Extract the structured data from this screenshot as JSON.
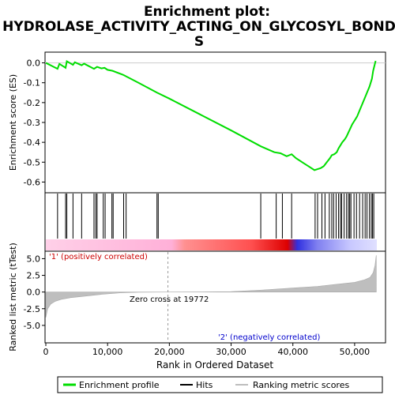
{
  "title": {
    "line1": "Enrichment plot:",
    "line2": "HYDROLASE_ACTIVITY_ACTING_ON_GLYCOSYL_BOND",
    "line3": "S"
  },
  "chart_data": {
    "type": "line",
    "panels": {
      "enrichment": {
        "ylabel": "Enrichment score (ES)",
        "ylim": [
          -0.65,
          0.05
        ],
        "yticks": [
          "0.0",
          "-0.1",
          "-0.2",
          "-0.3",
          "-0.4",
          "-0.5",
          "-0.6"
        ],
        "ytick_values": [
          0.0,
          -0.1,
          -0.2,
          -0.3,
          -0.4,
          -0.5,
          -0.6
        ],
        "series": [
          {
            "name": "Enrichment profile",
            "color": "#00dd00",
            "x": [
              0,
              1900,
              2200,
              3200,
              3400,
              4400,
              4700,
              5800,
              6200,
              7800,
              8300,
              9000,
              9500,
              10000,
              10800,
              12500,
              15000,
              18000,
              20000,
              25000,
              30000,
              34800,
              37000,
              38000,
              39000,
              39800,
              40500,
              41500,
              42500,
              43500,
              44000,
              44500,
              45000,
              45500,
              46000,
              46300,
              46700,
              47100,
              47400,
              47700,
              48000,
              48400,
              48700,
              49000,
              49300,
              49600,
              50000,
              50400,
              50800,
              51200,
              51600,
              52000,
              52400,
              52800,
              53000,
              53400
            ],
            "y": [
              0.0,
              -0.03,
              -0.005,
              -0.025,
              0.008,
              -0.01,
              0.003,
              -0.012,
              -0.004,
              -0.03,
              -0.02,
              -0.028,
              -0.025,
              -0.035,
              -0.04,
              -0.06,
              -0.1,
              -0.15,
              -0.18,
              -0.26,
              -0.34,
              -0.42,
              -0.45,
              -0.455,
              -0.47,
              -0.46,
              -0.48,
              -0.5,
              -0.52,
              -0.54,
              -0.535,
              -0.53,
              -0.52,
              -0.5,
              -0.48,
              -0.465,
              -0.46,
              -0.45,
              -0.43,
              -0.415,
              -0.4,
              -0.385,
              -0.37,
              -0.35,
              -0.33,
              -0.31,
              -0.29,
              -0.27,
              -0.24,
              -0.21,
              -0.18,
              -0.15,
              -0.12,
              -0.08,
              -0.04,
              0.01
            ]
          }
        ]
      },
      "hits": {
        "name": "Hits",
        "positions": [
          1900,
          3200,
          3400,
          4400,
          5800,
          7800,
          8100,
          8300,
          9300,
          9600,
          10700,
          10900,
          12600,
          13000,
          18000,
          18200,
          34800,
          37300,
          38300,
          39800,
          43600,
          44000,
          44700,
          45200,
          45900,
          46300,
          46600,
          47000,
          47400,
          47700,
          47900,
          48300,
          48700,
          49000,
          49200,
          49400,
          49900,
          50300,
          50800,
          51300,
          51700,
          52000,
          52400,
          52700,
          52900,
          53100
        ]
      },
      "ranked_metric": {
        "name": "Ranking metric scores",
        "xlabel": "Rank in Ordered Dataset",
        "ylabel": "Ranked list metric (tTest)",
        "xlim": [
          0,
          55000
        ],
        "ylim": [
          -7.5,
          6.0
        ],
        "xticks": [
          "0",
          "10,000",
          "20,000",
          "30,000",
          "40,000",
          "50,000"
        ],
        "xtick_values": [
          0,
          10000,
          20000,
          30000,
          40000,
          50000
        ],
        "yticks": [
          "5.0",
          "2.5",
          "0.0",
          "-2.5",
          "-5.0"
        ],
        "ytick_values": [
          5.0,
          2.5,
          0.0,
          -2.5,
          -5.0
        ],
        "x": [
          0,
          300,
          800,
          1500,
          2500,
          4000,
          6000,
          9000,
          12000,
          15000,
          19772,
          25000,
          30000,
          35000,
          40000,
          44000,
          47000,
          50000,
          51500,
          52500,
          53000,
          53300,
          53500
        ],
        "y": [
          -3.8,
          -2.5,
          -1.8,
          -1.4,
          -1.1,
          -0.85,
          -0.65,
          -0.35,
          -0.12,
          -0.04,
          0.0,
          0.02,
          0.06,
          0.3,
          0.6,
          0.85,
          1.15,
          1.45,
          1.8,
          2.2,
          2.9,
          4.0,
          5.5
        ]
      }
    },
    "zero_cross": 19772,
    "annotations": {
      "zero_cross_label": "Zero cross at 19772",
      "positive_label": "'1' (positively correlated)",
      "negative_label": "'2' (negatively correlated)"
    },
    "colors": {
      "profile": "#00dd00",
      "hits": "#000000",
      "metric": "#bebebe",
      "positive_text": "#cc0000",
      "negative_text": "#0000cc"
    },
    "legend": {
      "placement": "bottom",
      "items": [
        "Enrichment profile",
        "Hits",
        "Ranking metric scores"
      ]
    }
  }
}
